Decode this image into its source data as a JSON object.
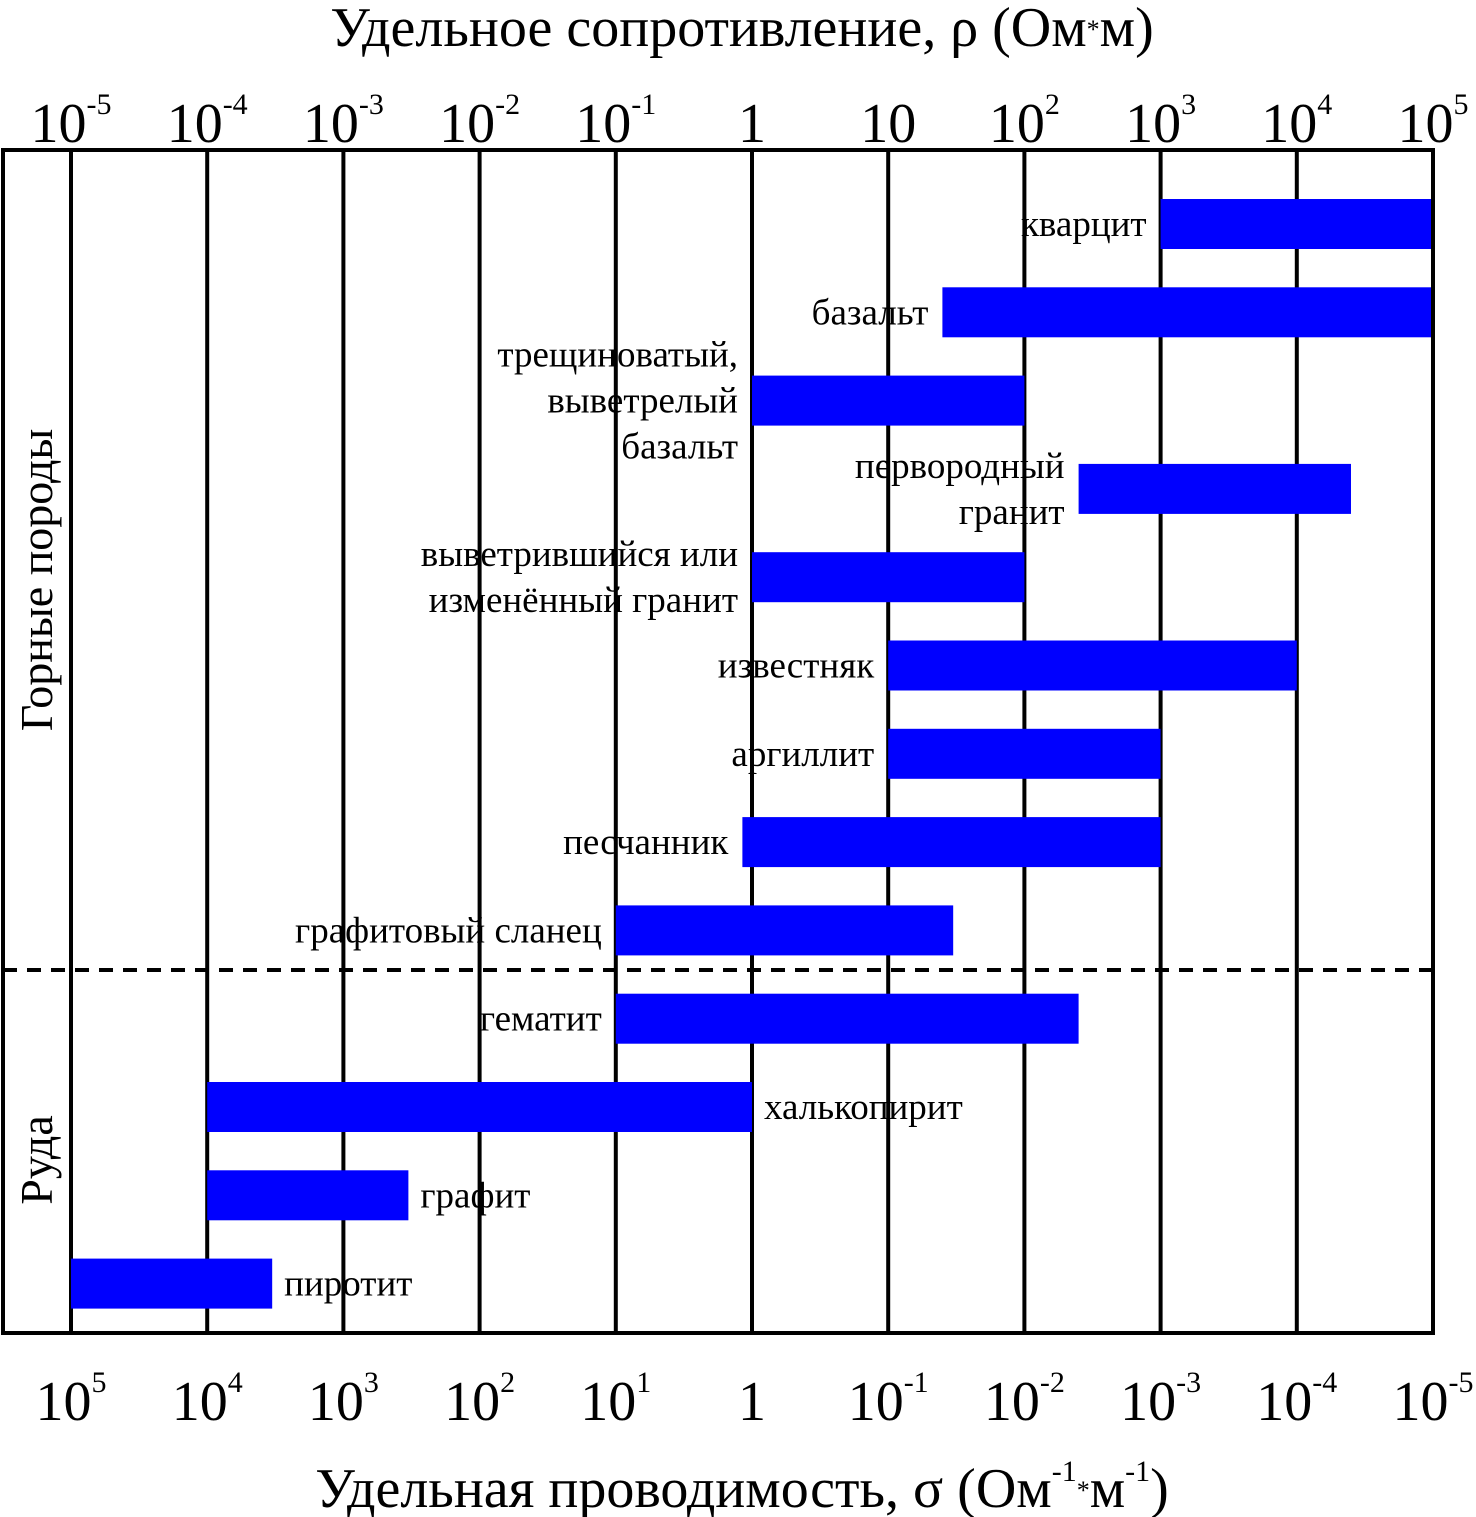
{
  "chart_data": {
    "type": "bar",
    "title": "Удельное сопротивление, ρ (Ом*м)",
    "xlabel": "Удельная проводимость, σ (Ом-1*м-1)",
    "title_parts": {
      "main": "Удельное сопротивление, ρ (Ом",
      "star": "*",
      "end": "м)"
    },
    "xlabel_parts": {
      "main": "Удельная проводимость, σ (Ом",
      "exp1": "-1",
      "star": "*",
      "m": "м",
      "exp2": "-1",
      "close": ")"
    },
    "scale": "log",
    "xlim": [
      1e-05,
      100000
    ],
    "top_ticks": [
      {
        "base": "10",
        "exp": "-5"
      },
      {
        "base": "10",
        "exp": "-4"
      },
      {
        "base": "10",
        "exp": "-3"
      },
      {
        "base": "10",
        "exp": "-2"
      },
      {
        "base": "10",
        "exp": "-1"
      },
      {
        "base": "1",
        "exp": ""
      },
      {
        "base": "10",
        "exp": ""
      },
      {
        "base": "10",
        "exp": "2"
      },
      {
        "base": "10",
        "exp": "3"
      },
      {
        "base": "10",
        "exp": "4"
      },
      {
        "base": "10",
        "exp": "5"
      }
    ],
    "bottom_ticks": [
      {
        "base": "10",
        "exp": "5"
      },
      {
        "base": "10",
        "exp": "4"
      },
      {
        "base": "10",
        "exp": "3"
      },
      {
        "base": "10",
        "exp": "2"
      },
      {
        "base": "10",
        "exp": "1"
      },
      {
        "base": "1",
        "exp": ""
      },
      {
        "base": "10",
        "exp": "-1"
      },
      {
        "base": "10",
        "exp": "-2"
      },
      {
        "base": "10",
        "exp": "-3"
      },
      {
        "base": "10",
        "exp": "-4"
      },
      {
        "base": "10",
        "exp": "-5"
      }
    ],
    "groups": [
      {
        "label": "Горные породы"
      },
      {
        "label": "Руда"
      }
    ],
    "color": "#0000ff",
    "series": [
      {
        "name": "кварцит",
        "group": "Горные породы",
        "range": [
          1000,
          100000
        ],
        "label_side": "left"
      },
      {
        "name": "базальт",
        "group": "Горные породы",
        "range": [
          25,
          100000
        ],
        "label_side": "left"
      },
      {
        "name": "трещиноватый,\nвыветрелый\nбазальт",
        "group": "Горные породы",
        "range": [
          1,
          100
        ],
        "label_side": "left"
      },
      {
        "name": "первородный\nгранит",
        "group": "Горные породы",
        "range": [
          250,
          25000
        ],
        "label_side": "left"
      },
      {
        "name": "выветрившийся или\nизменённый гранит",
        "group": "Горные породы",
        "range": [
          1,
          100
        ],
        "label_side": "left"
      },
      {
        "name": "известняк",
        "group": "Горные породы",
        "range": [
          10,
          10000
        ],
        "label_side": "left"
      },
      {
        "name": "аргиллит",
        "group": "Горные породы",
        "range": [
          10,
          1000
        ],
        "label_side": "left"
      },
      {
        "name": "песчанник",
        "group": "Горные породы",
        "range": [
          0.85,
          1000
        ],
        "label_side": "left"
      },
      {
        "name": "графитовый сланец",
        "group": "Горные породы",
        "range": [
          0.1,
          30
        ],
        "label_side": "left"
      },
      {
        "name": "гематит",
        "group": "Руда",
        "range": [
          0.1,
          250
        ],
        "label_side": "left"
      },
      {
        "name": "халькопирит",
        "group": "Руда",
        "range": [
          0.0001,
          1
        ],
        "label_side": "right"
      },
      {
        "name": "графит",
        "group": "Руда",
        "range": [
          0.0001,
          0.003
        ],
        "label_side": "right"
      },
      {
        "name": "пиротит",
        "group": "Руда",
        "range": [
          1e-05,
          0.0003
        ],
        "label_side": "right"
      }
    ]
  }
}
